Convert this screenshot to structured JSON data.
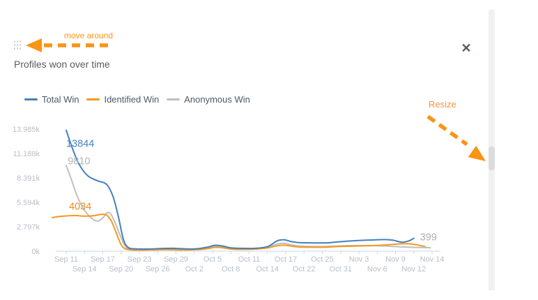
{
  "widget": {
    "title": "Profiles won over time",
    "close_icon": "✕",
    "annotations": {
      "move": "move around",
      "resize": "Resize"
    },
    "annotation_color": "#fb9413"
  },
  "chart_data": {
    "type": "line",
    "title": "Profiles won over time",
    "legend_position": "top",
    "grid": false,
    "ylim": [
      0,
      13985
    ],
    "axis_color": "#c5d8ec",
    "tick_text_color": "#b7c0ca",
    "y_ticks": [
      {
        "label": "13.985k",
        "value": 13985
      },
      {
        "label": "11.188k",
        "value": 11188
      },
      {
        "label": "8.391k",
        "value": 8391
      },
      {
        "label": "5.594k",
        "value": 5594
      },
      {
        "label": "2.797k",
        "value": 2797
      },
      {
        "label": "0k",
        "value": 0
      }
    ],
    "x_ticks": [
      {
        "label": "Sep 11",
        "day": 0
      },
      {
        "label": "Sep 14",
        "day": 3
      },
      {
        "label": "Sep 17",
        "day": 6
      },
      {
        "label": "Sep 20",
        "day": 9
      },
      {
        "label": "Sep 23",
        "day": 12
      },
      {
        "label": "Sep 26",
        "day": 15
      },
      {
        "label": "Sep 29",
        "day": 18
      },
      {
        "label": "Oct 2",
        "day": 21
      },
      {
        "label": "Oct 5",
        "day": 24
      },
      {
        "label": "Oct 8",
        "day": 27
      },
      {
        "label": "Oct 11",
        "day": 30
      },
      {
        "label": "Oct 14",
        "day": 33
      },
      {
        "label": "Oct 17",
        "day": 36
      },
      {
        "label": "Oct 22",
        "day": 41
      },
      {
        "label": "Oct 25",
        "day": 44
      },
      {
        "label": "Oct 31",
        "day": 50
      },
      {
        "label": "Nov 3",
        "day": 53
      },
      {
        "label": "Nov 6",
        "day": 56
      },
      {
        "label": "Nov 9",
        "day": 59
      },
      {
        "label": "Nov 12",
        "day": 62
      },
      {
        "label": "Nov 14",
        "day": 64
      }
    ],
    "series": [
      {
        "name": "Total Win",
        "color": "#4380bf",
        "points": [
          [
            0,
            13844
          ],
          [
            0.9,
            12000
          ],
          [
            1.8,
            10400
          ],
          [
            2.7,
            9300
          ],
          [
            3.6,
            8600
          ],
          [
            4.5,
            8250
          ],
          [
            5.4,
            8000
          ],
          [
            6.3,
            7800
          ],
          [
            7,
            7300
          ],
          [
            7.8,
            6000
          ],
          [
            8.6,
            3800
          ],
          [
            9.4,
            1300
          ],
          [
            10.2,
            400
          ],
          [
            11.5,
            260
          ],
          [
            13.5,
            240
          ],
          [
            15.5,
            300
          ],
          [
            17.5,
            330
          ],
          [
            19.5,
            260
          ],
          [
            21.5,
            280
          ],
          [
            23.3,
            480
          ],
          [
            24.4,
            680
          ],
          [
            25.6,
            600
          ],
          [
            27,
            380
          ],
          [
            29,
            320
          ],
          [
            31,
            330
          ],
          [
            33,
            520
          ],
          [
            34.6,
            1180
          ],
          [
            35.8,
            1300
          ],
          [
            37.2,
            1130
          ],
          [
            39,
            1000
          ],
          [
            41,
            960
          ],
          [
            43.5,
            940
          ],
          [
            46,
            960
          ],
          [
            48.5,
            1040
          ],
          [
            51,
            1140
          ],
          [
            53.5,
            1240
          ],
          [
            55.5,
            1290
          ],
          [
            57.2,
            1330
          ],
          [
            58.6,
            1260
          ],
          [
            60,
            1020
          ],
          [
            61.2,
            1180
          ],
          [
            62,
            1480
          ]
        ]
      },
      {
        "name": "Identified Win",
        "color": "#f7981d",
        "points": [
          [
            -2.3,
            3840
          ],
          [
            -1.1,
            3970
          ],
          [
            0,
            4034
          ],
          [
            1.5,
            4080
          ],
          [
            3,
            4010
          ],
          [
            4.5,
            4070
          ],
          [
            5.8,
            4220
          ],
          [
            6.6,
            4130
          ],
          [
            7.4,
            3450
          ],
          [
            8.2,
            2100
          ],
          [
            9,
            750
          ],
          [
            9.8,
            240
          ],
          [
            11.5,
            120
          ],
          [
            14,
            140
          ],
          [
            16.5,
            170
          ],
          [
            19,
            130
          ],
          [
            21.5,
            170
          ],
          [
            23.3,
            300
          ],
          [
            24.4,
            440
          ],
          [
            25.6,
            390
          ],
          [
            27,
            240
          ],
          [
            29,
            200
          ],
          [
            31,
            230
          ],
          [
            33,
            370
          ],
          [
            34.6,
            620
          ],
          [
            35.8,
            680
          ],
          [
            37.2,
            600
          ],
          [
            39,
            500
          ],
          [
            41,
            460
          ],
          [
            43.5,
            450
          ],
          [
            46,
            470
          ],
          [
            48.5,
            520
          ],
          [
            51,
            560
          ],
          [
            53.5,
            600
          ],
          [
            55.5,
            640
          ],
          [
            57.5,
            720
          ],
          [
            59.5,
            820
          ],
          [
            61,
            860
          ],
          [
            62,
            780
          ],
          [
            63.2,
            540
          ]
        ]
      },
      {
        "name": "Anonymous Win",
        "color": "#bfbfbf",
        "points": [
          [
            0,
            9810
          ],
          [
            0.9,
            8100
          ],
          [
            1.8,
            6300
          ],
          [
            2.7,
            5000
          ],
          [
            3.6,
            4150
          ],
          [
            4.4,
            3650
          ],
          [
            5.2,
            3450
          ],
          [
            6,
            3800
          ],
          [
            6.7,
            4400
          ],
          [
            7.3,
            4250
          ],
          [
            8,
            3300
          ],
          [
            8.8,
            1900
          ],
          [
            9.6,
            650
          ],
          [
            10.4,
            250
          ],
          [
            12,
            140
          ],
          [
            15,
            190
          ],
          [
            17.5,
            210
          ],
          [
            19.5,
            160
          ],
          [
            21.5,
            210
          ],
          [
            23.3,
            370
          ],
          [
            24.4,
            540
          ],
          [
            25.6,
            480
          ],
          [
            27,
            300
          ],
          [
            29,
            250
          ],
          [
            31,
            290
          ],
          [
            33,
            440
          ],
          [
            34.6,
            820
          ],
          [
            35.8,
            890
          ],
          [
            37.2,
            760
          ],
          [
            39,
            620
          ],
          [
            41,
            560
          ],
          [
            43.5,
            530
          ],
          [
            46,
            550
          ],
          [
            48.5,
            590
          ],
          [
            51,
            630
          ],
          [
            53.5,
            650
          ],
          [
            55.5,
            640
          ],
          [
            57.2,
            600
          ],
          [
            58.6,
            540
          ],
          [
            60.5,
            470
          ],
          [
            63.8,
            399
          ]
        ]
      }
    ],
    "point_labels": [
      {
        "text": "13844",
        "series": "Total Win",
        "color": "#4a82c4",
        "day": 2.3,
        "value": 12350
      },
      {
        "text": "9810",
        "series": "Anonymous Win",
        "color": "#b3b3b3",
        "day": 2.1,
        "value": 10350
      },
      {
        "text": "4034",
        "series": "Identified Win",
        "color": "#ee8d1e",
        "day": 2.3,
        "value": 5150
      },
      {
        "text": "399",
        "series": "Anonymous Win",
        "color": "#adadad",
        "day": 63.6,
        "value": 1650
      }
    ]
  }
}
